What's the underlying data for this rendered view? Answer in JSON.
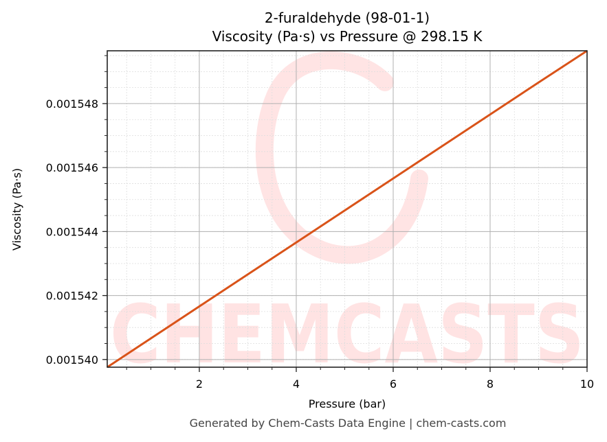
{
  "chart_data": {
    "type": "line",
    "title": "2-furaldehyde (98-01-1)",
    "subtitle": "Viscosity (Pa·s) vs Pressure @ 298.15 K",
    "xlabel": "Pressure (bar)",
    "ylabel": "Viscosity (Pa·s)",
    "xlim": [
      0.1,
      10
    ],
    "ylim": [
      0.00153976,
      0.00154965
    ],
    "x_ticks": [
      2,
      4,
      6,
      8,
      10
    ],
    "x_tick_labels": [
      "2",
      "4",
      "6",
      "8",
      "10"
    ],
    "x_minor_step": 0.5,
    "y_ticks": [
      0.00154,
      0.001542,
      0.001544,
      0.001546,
      0.001548
    ],
    "y_tick_labels": [
      "0.001540",
      "0.001542",
      "0.001544",
      "0.001546",
      "0.001548"
    ],
    "y_minor_step": 5e-07,
    "grid": true,
    "legend": null,
    "series": [
      {
        "name": "Viscosity",
        "color": "#d95319",
        "x": [
          0.1,
          1,
          2,
          3,
          4,
          5,
          6,
          7,
          8,
          9,
          10
        ],
        "values": [
          0.00153976,
          0.00154066,
          0.00154166,
          0.00154266,
          0.00154366,
          0.00154466,
          0.00154566,
          0.00154666,
          0.00154766,
          0.00154866,
          0.00154965
        ]
      }
    ],
    "watermark": "CHEMCASTS"
  },
  "header": {
    "title": "2-furaldehyde (98-01-1)",
    "subtitle": "Viscosity (Pa·s) vs Pressure @ 298.15 K"
  },
  "axes": {
    "xlabel": "Pressure (bar)",
    "ylabel": "Viscosity (Pa·s)"
  },
  "watermark": {
    "text": "CHEMCASTS",
    "color": "#ff2d2d"
  },
  "colors": {
    "line": "#d95319",
    "major_grid": "#b0b0b0",
    "minor_grid": "#dddddd",
    "spine": "#222222"
  },
  "footer": {
    "text": "Generated by Chem-Casts Data Engine | chem-casts.com"
  }
}
